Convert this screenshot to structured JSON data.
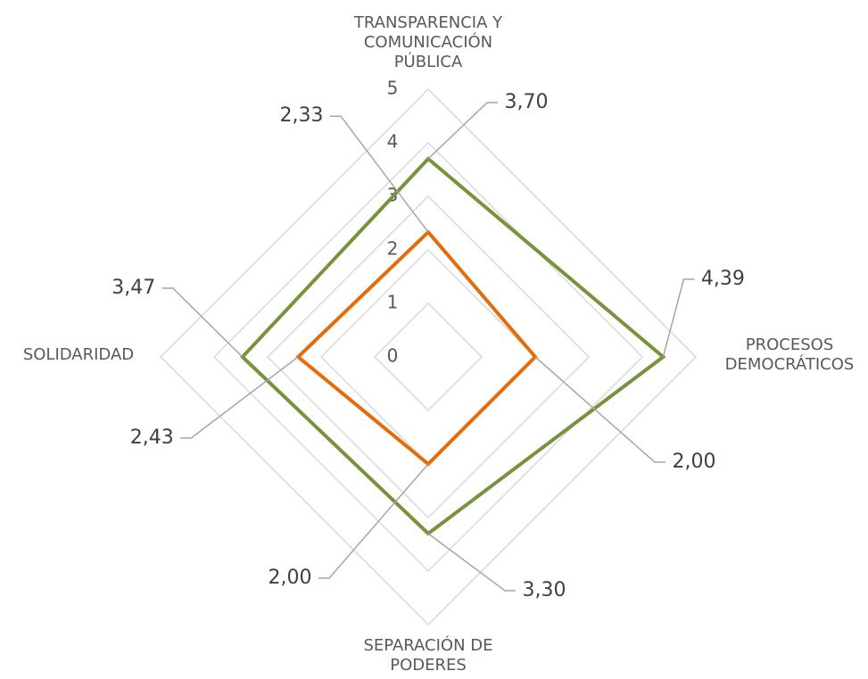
{
  "chart_data": {
    "type": "radar",
    "categories": [
      "TRANSPARENCIA Y COMUNICACIÓN PÚBLICA",
      "PROCESOS DEMOCRÁTICOS",
      "SEPARACIÓN DE PODERES",
      "SOLIDARIDAD"
    ],
    "ylim": [
      0,
      5
    ],
    "yticks": [
      0,
      1,
      2,
      3,
      4,
      5
    ],
    "grid": true,
    "series": [
      {
        "color": "#77933c",
        "values": [
          3.7,
          4.39,
          3.3,
          3.47
        ],
        "value_labels": [
          "3,70",
          "4,39",
          "3,30",
          "3,47"
        ]
      },
      {
        "color": "#e46c0a",
        "values": [
          2.33,
          2.0,
          2.0,
          2.43
        ],
        "value_labels": [
          "2,33",
          "2,00",
          "2,00",
          "2,43"
        ]
      }
    ]
  }
}
